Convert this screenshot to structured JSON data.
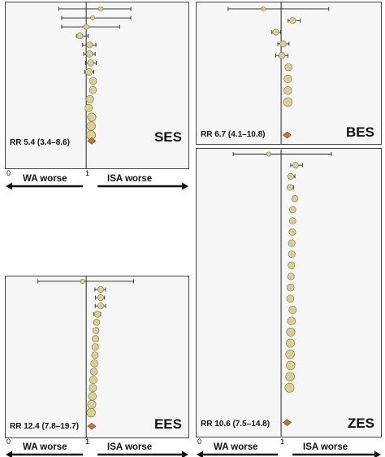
{
  "colors": {
    "marker": "#d9cf98",
    "marker_stroke": "#8a7f47",
    "pooled": "#b97a36",
    "line": "#222222"
  },
  "axis_labels": {
    "left_tick": "0",
    "null_tick": "1",
    "left_direction": "WA worse",
    "right_direction": "ISA worse"
  },
  "chart_data": [
    {
      "type": "scatter",
      "stent": "SES",
      "summary": "RR 5.4 (3.4–8.6)",
      "x_scale": "log",
      "null_value": 1,
      "points": [
        {
          "rr": 8.0,
          "lo": 0.02,
          "hi": 600,
          "weight": 0.3
        },
        {
          "rr": 2.5,
          "lo": 0.03,
          "hi": 600,
          "weight": 0.3
        },
        {
          "rr": 1.0,
          "lo": 0.03,
          "hi": 120,
          "weight": 0.4
        },
        {
          "rr": 0.4,
          "lo": 0.25,
          "hi": 1.3,
          "weight": 0.5
        },
        {
          "rr": 1.6,
          "lo": 0.6,
          "hi": 4.0,
          "weight": 0.5
        },
        {
          "rr": 1.6,
          "lo": 0.7,
          "hi": 3.6,
          "weight": 0.55
        },
        {
          "rr": 1.9,
          "lo": 0.9,
          "hi": 4.2,
          "weight": 0.55
        },
        {
          "rr": 1.5,
          "lo": 0.8,
          "hi": 3.0,
          "weight": 0.6
        },
        {
          "rr": 2.7,
          "lo": 1.9,
          "hi": 3.9,
          "weight": 0.65
        },
        {
          "rr": 2.6,
          "lo": 1.9,
          "hi": 3.5,
          "weight": 0.65
        },
        {
          "rr": 1.7,
          "lo": 1.4,
          "hi": 2.1,
          "weight": 0.7
        },
        {
          "rr": 1.4,
          "lo": 1.2,
          "hi": 1.6,
          "weight": 0.7
        },
        {
          "rr": 2.2,
          "lo": null,
          "hi": null,
          "weight": 0.8
        },
        {
          "rr": 2.0,
          "lo": null,
          "hi": null,
          "weight": 0.85
        },
        {
          "rr": 2.0,
          "lo": null,
          "hi": null,
          "weight": 0.9
        }
      ],
      "pooled": {
        "rr": 5.4,
        "lo": 3.4,
        "hi": 8.6
      }
    },
    {
      "type": "scatter",
      "stent": "BES",
      "summary": "RR 6.7 (4.1–10.8)",
      "x_scale": "log",
      "null_value": 1,
      "points": [
        {
          "rr": 0.1,
          "lo": 0.001,
          "hi": 500,
          "weight": 0.3
        },
        {
          "rr": 4.5,
          "lo": 2.5,
          "hi": 12.0,
          "weight": 0.5
        },
        {
          "rr": 0.5,
          "lo": 0.3,
          "hi": 0.95,
          "weight": 0.5
        },
        {
          "rr": 1.3,
          "lo": 0.65,
          "hi": 2.8,
          "weight": 0.55
        },
        {
          "rr": 1.1,
          "lo": 0.5,
          "hi": 2.4,
          "weight": 0.55
        },
        {
          "rr": 2.6,
          "lo": 1.9,
          "hi": 3.5,
          "weight": 0.65
        },
        {
          "rr": 2.4,
          "lo": null,
          "hi": null,
          "weight": 0.7
        },
        {
          "rr": 2.4,
          "lo": null,
          "hi": null,
          "weight": 0.75
        },
        {
          "rr": 2.4,
          "lo": null,
          "hi": null,
          "weight": 0.85
        }
      ],
      "pooled": {
        "rr": 6.7,
        "lo": 4.1,
        "hi": 10.8
      }
    },
    {
      "type": "scatter",
      "stent": "EES",
      "summary": "RR 12.4 (7.8–19.7)",
      "x_scale": "log",
      "null_value": 1,
      "points": [
        {
          "rr": 0.6,
          "lo": 0.001,
          "hi": 900,
          "weight": 0.3
        },
        {
          "rr": 8.0,
          "lo": 3.5,
          "hi": 16.0,
          "weight": 0.5
        },
        {
          "rr": 8.0,
          "lo": 3.8,
          "hi": 14.0,
          "weight": 0.5
        },
        {
          "rr": 8.0,
          "lo": 3.6,
          "hi": 16.0,
          "weight": 0.5
        },
        {
          "rr": 5.0,
          "lo": 3.0,
          "hi": 8.0,
          "weight": 0.55
        },
        {
          "rr": 4.5,
          "lo": 3.0,
          "hi": 6.5,
          "weight": 0.55
        },
        {
          "rr": 4.0,
          "lo": 2.8,
          "hi": 6.0,
          "weight": 0.55
        },
        {
          "rr": 3.8,
          "lo": 2.7,
          "hi": 5.5,
          "weight": 0.6
        },
        {
          "rr": 3.6,
          "lo": 2.6,
          "hi": 5.0,
          "weight": 0.6
        },
        {
          "rr": 3.5,
          "lo": 2.6,
          "hi": 4.8,
          "weight": 0.6
        },
        {
          "rr": 3.2,
          "lo": 2.4,
          "hi": 4.2,
          "weight": 0.65
        },
        {
          "rr": 3.0,
          "lo": null,
          "hi": null,
          "weight": 0.65
        },
        {
          "rr": 2.8,
          "lo": null,
          "hi": null,
          "weight": 0.7
        },
        {
          "rr": 2.6,
          "lo": null,
          "hi": null,
          "weight": 0.7
        },
        {
          "rr": 2.4,
          "lo": null,
          "hi": null,
          "weight": 0.75
        },
        {
          "rr": 2.2,
          "lo": null,
          "hi": null,
          "weight": 0.8
        },
        {
          "rr": 2.0,
          "lo": null,
          "hi": null,
          "weight": 0.85
        }
      ],
      "pooled": {
        "rr": 12.4,
        "lo": 7.8,
        "hi": 19.7
      }
    },
    {
      "type": "scatter",
      "stent": "ZES",
      "summary": "RR 10.6 (7.5–14.8)",
      "x_scale": "log",
      "null_value": 1,
      "points": [
        {
          "rr": 0.2,
          "lo": 0.002,
          "hi": 700,
          "weight": 0.3
        },
        {
          "rr": 6.5,
          "lo": 3.5,
          "hi": 16.0,
          "weight": 0.5
        },
        {
          "rr": 3.5,
          "lo": 2.6,
          "hi": 6.0,
          "weight": 0.5
        },
        {
          "rr": 3.2,
          "lo": 2.5,
          "hi": 5.0,
          "weight": 0.5
        },
        {
          "rr": 6.0,
          "lo": 4.5,
          "hi": 8.0,
          "weight": 0.55
        },
        {
          "rr": 4.5,
          "lo": 3.5,
          "hi": 6.0,
          "weight": 0.55
        },
        {
          "rr": 4.5,
          "lo": 3.7,
          "hi": 5.8,
          "weight": 0.55
        },
        {
          "rr": 4.3,
          "lo": 3.5,
          "hi": 5.3,
          "weight": 0.6
        },
        {
          "rr": 4.0,
          "lo": 3.3,
          "hi": 5.0,
          "weight": 0.6
        },
        {
          "rr": 4.0,
          "lo": 3.4,
          "hi": 4.8,
          "weight": 0.6
        },
        {
          "rr": 3.8,
          "lo": 3.2,
          "hi": 4.5,
          "weight": 0.6
        },
        {
          "rr": 3.6,
          "lo": null,
          "hi": null,
          "weight": 0.6
        },
        {
          "rr": 3.4,
          "lo": null,
          "hi": null,
          "weight": 0.65
        },
        {
          "rr": 3.3,
          "lo": null,
          "hi": null,
          "weight": 0.65
        },
        {
          "rr": 4.5,
          "lo": null,
          "hi": null,
          "weight": 0.7
        },
        {
          "rr": 3.8,
          "lo": null,
          "hi": null,
          "weight": 0.75
        },
        {
          "rr": 3.5,
          "lo": null,
          "hi": null,
          "weight": 0.8
        },
        {
          "rr": 3.3,
          "lo": null,
          "hi": null,
          "weight": 0.8
        },
        {
          "rr": 3.2,
          "lo": null,
          "hi": null,
          "weight": 0.85
        },
        {
          "rr": 3.4,
          "lo": null,
          "hi": null,
          "weight": 0.85
        },
        {
          "rr": 3.2,
          "lo": null,
          "hi": null,
          "weight": 0.85
        },
        {
          "rr": 3.0,
          "lo": null,
          "hi": null,
          "weight": 0.9
        }
      ],
      "pooled": {
        "rr": 10.6,
        "lo": 7.5,
        "hi": 14.8
      }
    }
  ]
}
